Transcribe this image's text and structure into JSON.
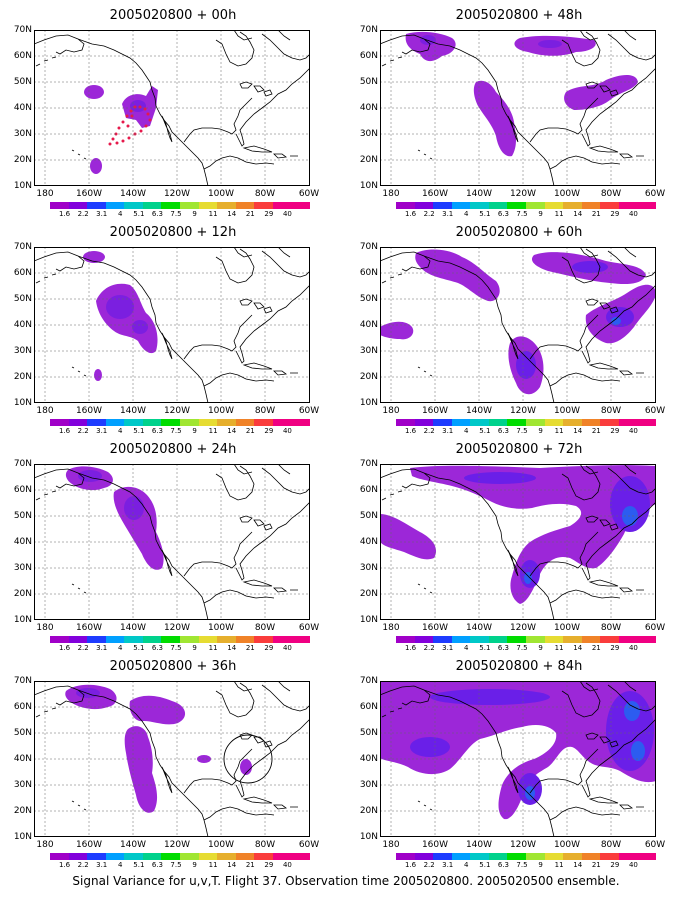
{
  "caption": "Signal Variance for u,v,T. Flight 37. Observation time 2005020800. 2005020500 ensemble.",
  "y_ticks": [
    "70N",
    "60N",
    "50N",
    "40N",
    "30N",
    "20N",
    "10N"
  ],
  "x_ticks": [
    "180",
    "160W",
    "140W",
    "120W",
    "100W",
    "80W",
    "60W"
  ],
  "colorbar": {
    "labels": [
      "1.6",
      "2.2",
      "3.1",
      "4",
      "5.1",
      "6.3",
      "7.5",
      "9",
      "11",
      "14",
      "21",
      "29",
      "40"
    ],
    "colors": [
      "#a000c8",
      "#8200dc",
      "#1e3cff",
      "#00a0ff",
      "#00c8c8",
      "#00d28c",
      "#00dc00",
      "#a0e632",
      "#e6dc32",
      "#e6af2d",
      "#f08228",
      "#fa3c3c",
      "#f00082"
    ]
  },
  "panels": [
    {
      "title": "2005020800 + 00h",
      "lead_hours": 0,
      "variance_level": "low"
    },
    {
      "title": "2005020800 + 48h",
      "lead_hours": 48,
      "variance_level": "low-moderate"
    },
    {
      "title": "2005020800 + 12h",
      "lead_hours": 12,
      "variance_level": "low"
    },
    {
      "title": "2005020800 + 60h",
      "lead_hours": 60,
      "variance_level": "moderate"
    },
    {
      "title": "2005020800 + 24h",
      "lead_hours": 24,
      "variance_level": "low"
    },
    {
      "title": "2005020800 + 72h",
      "lead_hours": 72,
      "variance_level": "moderate"
    },
    {
      "title": "2005020800 + 36h",
      "lead_hours": 36,
      "variance_level": "low"
    },
    {
      "title": "2005020800 + 84h",
      "lead_hours": 84,
      "variance_level": "moderate-high"
    }
  ],
  "map_extent": {
    "lon_min": -185,
    "lon_max": -60,
    "lat_min": 10,
    "lat_max": 70,
    "grid": "dashed every 20 deg lon / 10 deg lat"
  },
  "flight_track": {
    "color": "#e6194b",
    "shape": "dotted loop",
    "panel": "+00h"
  }
}
